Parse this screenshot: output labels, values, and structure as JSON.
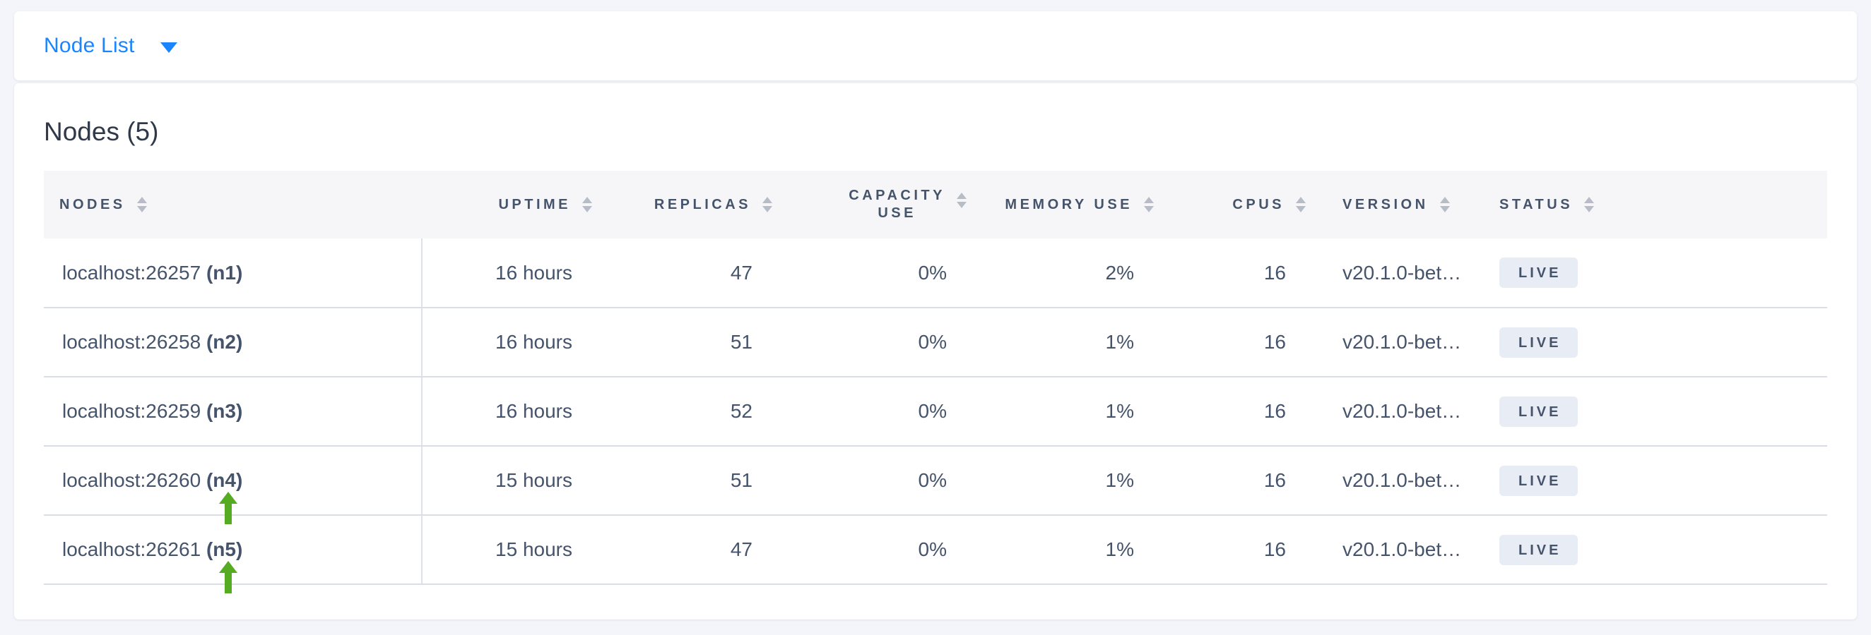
{
  "nav": {
    "dropdown_label": "Node List",
    "dropdown_icon": "caret-down-icon"
  },
  "page": {
    "title": "Nodes (5)"
  },
  "table": {
    "columns": [
      {
        "label": "NODES",
        "align": "left",
        "sortable": true
      },
      {
        "label": "UPTIME",
        "align": "right",
        "sortable": true
      },
      {
        "label": "REPLICAS",
        "align": "right",
        "sortable": true
      },
      {
        "label": "CAPACITY USE",
        "line1": "CAPACITY",
        "line2": "USE",
        "align": "right",
        "sortable": true
      },
      {
        "label": "MEMORY USE",
        "align": "right",
        "sortable": true
      },
      {
        "label": "CPUS",
        "align": "right",
        "sortable": true
      },
      {
        "label": "VERSION",
        "align": "left",
        "sortable": true
      },
      {
        "label": "STATUS",
        "align": "left",
        "sortable": true
      }
    ],
    "rows": [
      {
        "address": "localhost:26257",
        "node_id": "(n1)",
        "uptime": "16 hours",
        "replicas": "47",
        "capacity_use": "0%",
        "memory_use": "2%",
        "cpus": "16",
        "version": "v20.1.0-bet…",
        "status": "LIVE",
        "arrow": false
      },
      {
        "address": "localhost:26258",
        "node_id": "(n2)",
        "uptime": "16 hours",
        "replicas": "51",
        "capacity_use": "0%",
        "memory_use": "1%",
        "cpus": "16",
        "version": "v20.1.0-bet…",
        "status": "LIVE",
        "arrow": false
      },
      {
        "address": "localhost:26259",
        "node_id": "(n3)",
        "uptime": "16 hours",
        "replicas": "52",
        "capacity_use": "0%",
        "memory_use": "1%",
        "cpus": "16",
        "version": "v20.1.0-bet…",
        "status": "LIVE",
        "arrow": false
      },
      {
        "address": "localhost:26260",
        "node_id": "(n4)",
        "uptime": "15 hours",
        "replicas": "51",
        "capacity_use": "0%",
        "memory_use": "1%",
        "cpus": "16",
        "version": "v20.1.0-bet…",
        "status": "LIVE",
        "arrow": true
      },
      {
        "address": "localhost:26261",
        "node_id": "(n5)",
        "uptime": "15 hours",
        "replicas": "47",
        "capacity_use": "0%",
        "memory_use": "1%",
        "cpus": "16",
        "version": "v20.1.0-bet…",
        "status": "LIVE",
        "arrow": true
      }
    ]
  },
  "colors": {
    "accent_blue": "#1a85ff",
    "text_primary": "#45536b",
    "heading_text": "#30394a",
    "badge_bg": "#e8ecf4",
    "arrow_green": "#55ab21",
    "header_bg": "#f6f6f8",
    "row_border": "#d9dde6",
    "page_bg": "#f3f5fa",
    "card_bg": "#ffffff",
    "sort_icon_gray": "#b7bcc6"
  }
}
